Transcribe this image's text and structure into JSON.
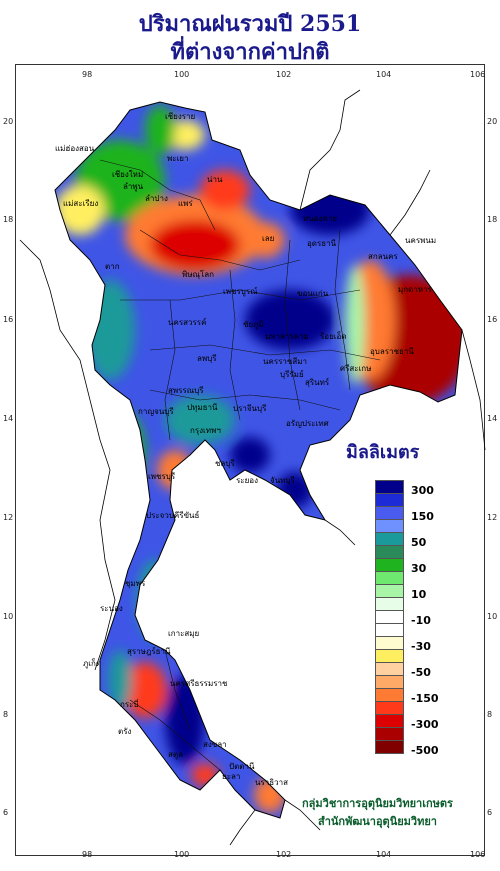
{
  "title_line1": "ปริมาณฝนรวมปี  2551",
  "title_line2": "ที่ต่างจากค่าปกติ",
  "legend": {
    "title": "มิลลิเมตร",
    "labels": [
      "300",
      "150",
      "50",
      "30",
      "10",
      "-10",
      "-30",
      "-50",
      "-150",
      "-300",
      "-500"
    ],
    "colors": [
      "#00008b",
      "#1c2bd6",
      "#4a5cf0",
      "#6f90ff",
      "#1a9a9a",
      "#2a8a5a",
      "#1fb31f",
      "#6fe86f",
      "#a8f5a8",
      "#e8fde8",
      "#ffffff",
      "#ffffff",
      "#fffbd0",
      "#ffef60",
      "#ffd0a0",
      "#ffaa66",
      "#ff7a33",
      "#ff3a1a",
      "#dd0000",
      "#aa0000",
      "#800000"
    ]
  },
  "credit_line1": "กลุ่มวิชาการอุตุนิยมวิทยาเกษตร",
  "credit_line2": "สำนักพัฒนาอุตุนิยมวิทยา",
  "axes": {
    "lon_ticks": [
      "98",
      "100",
      "102",
      "104",
      "106"
    ],
    "lat_ticks": [
      "20",
      "18",
      "16",
      "14",
      "12",
      "10",
      "8",
      "6"
    ]
  },
  "places": [
    "เชียงราย",
    "แม่ฮ่องสอน",
    "เชียงใหม่",
    "ลำพูน",
    "ลำปาง",
    "แพร่",
    "น่าน",
    "พะเยา",
    "แม่สะเรียง",
    "ตาก",
    "หนองคาย",
    "อุดรธานี",
    "นครพนม",
    "สกลนคร",
    "มุกดาหาร",
    "เลย",
    "พิษณุโลก",
    "เพชรบูรณ์",
    "ขอนแก่น",
    "นครสวรรค์",
    "ชัยภูมิ",
    "มหาสารคาม",
    "ร้อยเอ็ด",
    "อุบลราชธานี",
    "ลพบุรี",
    "นครราชสีมา",
    "บุรีรัมย์",
    "สุรินทร์",
    "ศรีสะเกษ",
    "สุพรรณบุรี",
    "กาญจนบุรี",
    "ปทุมธานี",
    "กรุงเทพฯ",
    "ปราจีนบุรี",
    "อรัญประเทศ",
    "ชลบุรี",
    "ระยอง",
    "จันทบุรี",
    "เพชรบุรี",
    "ประจวบคีรีขันธ์",
    "ชุมพร",
    "ระนอง",
    "สุราษฎร์ธานี",
    "เกาะสมุย",
    "ภูเก็ต",
    "กระบี่",
    "นครศรีธรรมราช",
    "ตรัง",
    "สงขลา",
    "ปัตตานี",
    "นราธิวาส",
    "สตูล",
    "ยะลา"
  ],
  "map_note_categories": [
    "-500",
    "-300",
    "-150",
    "-50",
    "-30",
    "-10",
    "10",
    "30",
    "50",
    "150",
    "300"
  ]
}
